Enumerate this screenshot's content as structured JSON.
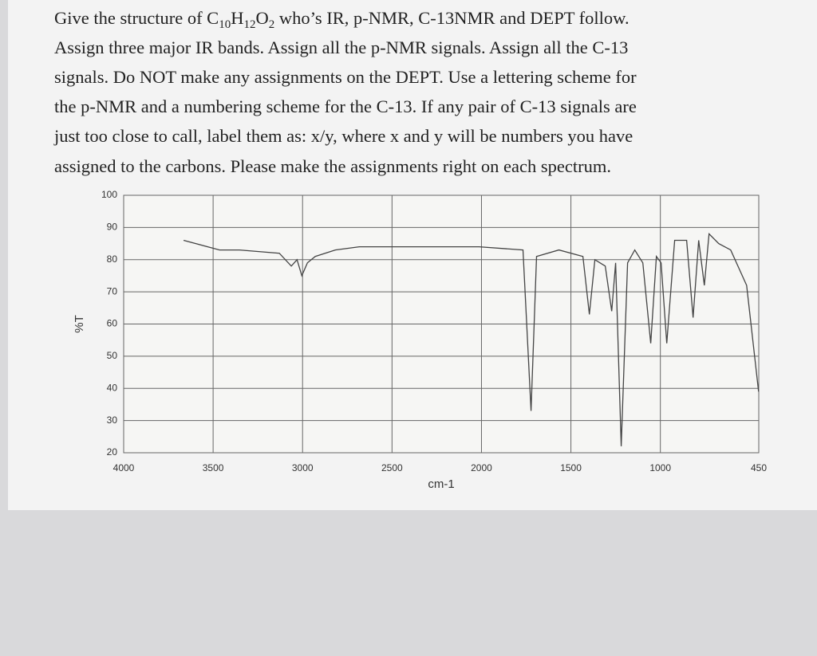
{
  "document": {
    "lines": [
      [
        "Give the structure of C",
        "10",
        "H",
        "12",
        "O",
        "2",
        " who’s IR, p-NMR, C-13NMR and DEPT follow."
      ],
      "Assign three major IR bands.  Assign all the p-NMR signals.  Assign all the C-13",
      "signals.  Do NOT make any assignments on the DEPT.  Use a lettering scheme for",
      "the p-NMR and a numbering scheme for the C-13.  If any pair of C-13 signals are",
      "just too close to call, label them as:  x/y, where x and y will be numbers you have",
      "assigned to the carbons.   Please make the assignments right on each spectrum."
    ]
  },
  "chart_data": {
    "type": "line",
    "x_label": "cm-1",
    "y_label": "%T",
    "xlim": [
      4000,
      450
    ],
    "ylim": [
      20,
      100
    ],
    "xticks": [
      4000,
      3500,
      3000,
      2500,
      2000,
      1500,
      1000,
      450
    ],
    "yticks": [
      20,
      30,
      40,
      50,
      60,
      70,
      80,
      90,
      100
    ],
    "grid": true,
    "x": [
      3665,
      3464,
      3353,
      3130,
      3063,
      3031,
      3004,
      2973,
      2929,
      2817,
      2683,
      2013,
      1768,
      1723,
      1692,
      1567,
      1433,
      1397,
      1366,
      1308,
      1272,
      1250,
      1219,
      1183,
      1143,
      1098,
      1054,
      1022,
      996,
      964,
      920,
      853,
      817,
      786,
      754,
      728,
      674,
      607,
      518,
      451
    ],
    "series": [
      {
        "color": "#444444",
        "values": [
          86,
          83,
          83,
          82,
          78,
          80,
          75,
          79,
          81,
          83,
          84,
          84,
          83,
          33,
          81,
          83,
          81,
          63,
          80,
          78,
          64,
          79,
          22,
          79,
          83,
          79,
          54,
          81,
          79,
          54,
          86,
          86,
          62,
          86,
          72,
          88,
          85,
          83,
          72,
          39
        ]
      }
    ]
  }
}
